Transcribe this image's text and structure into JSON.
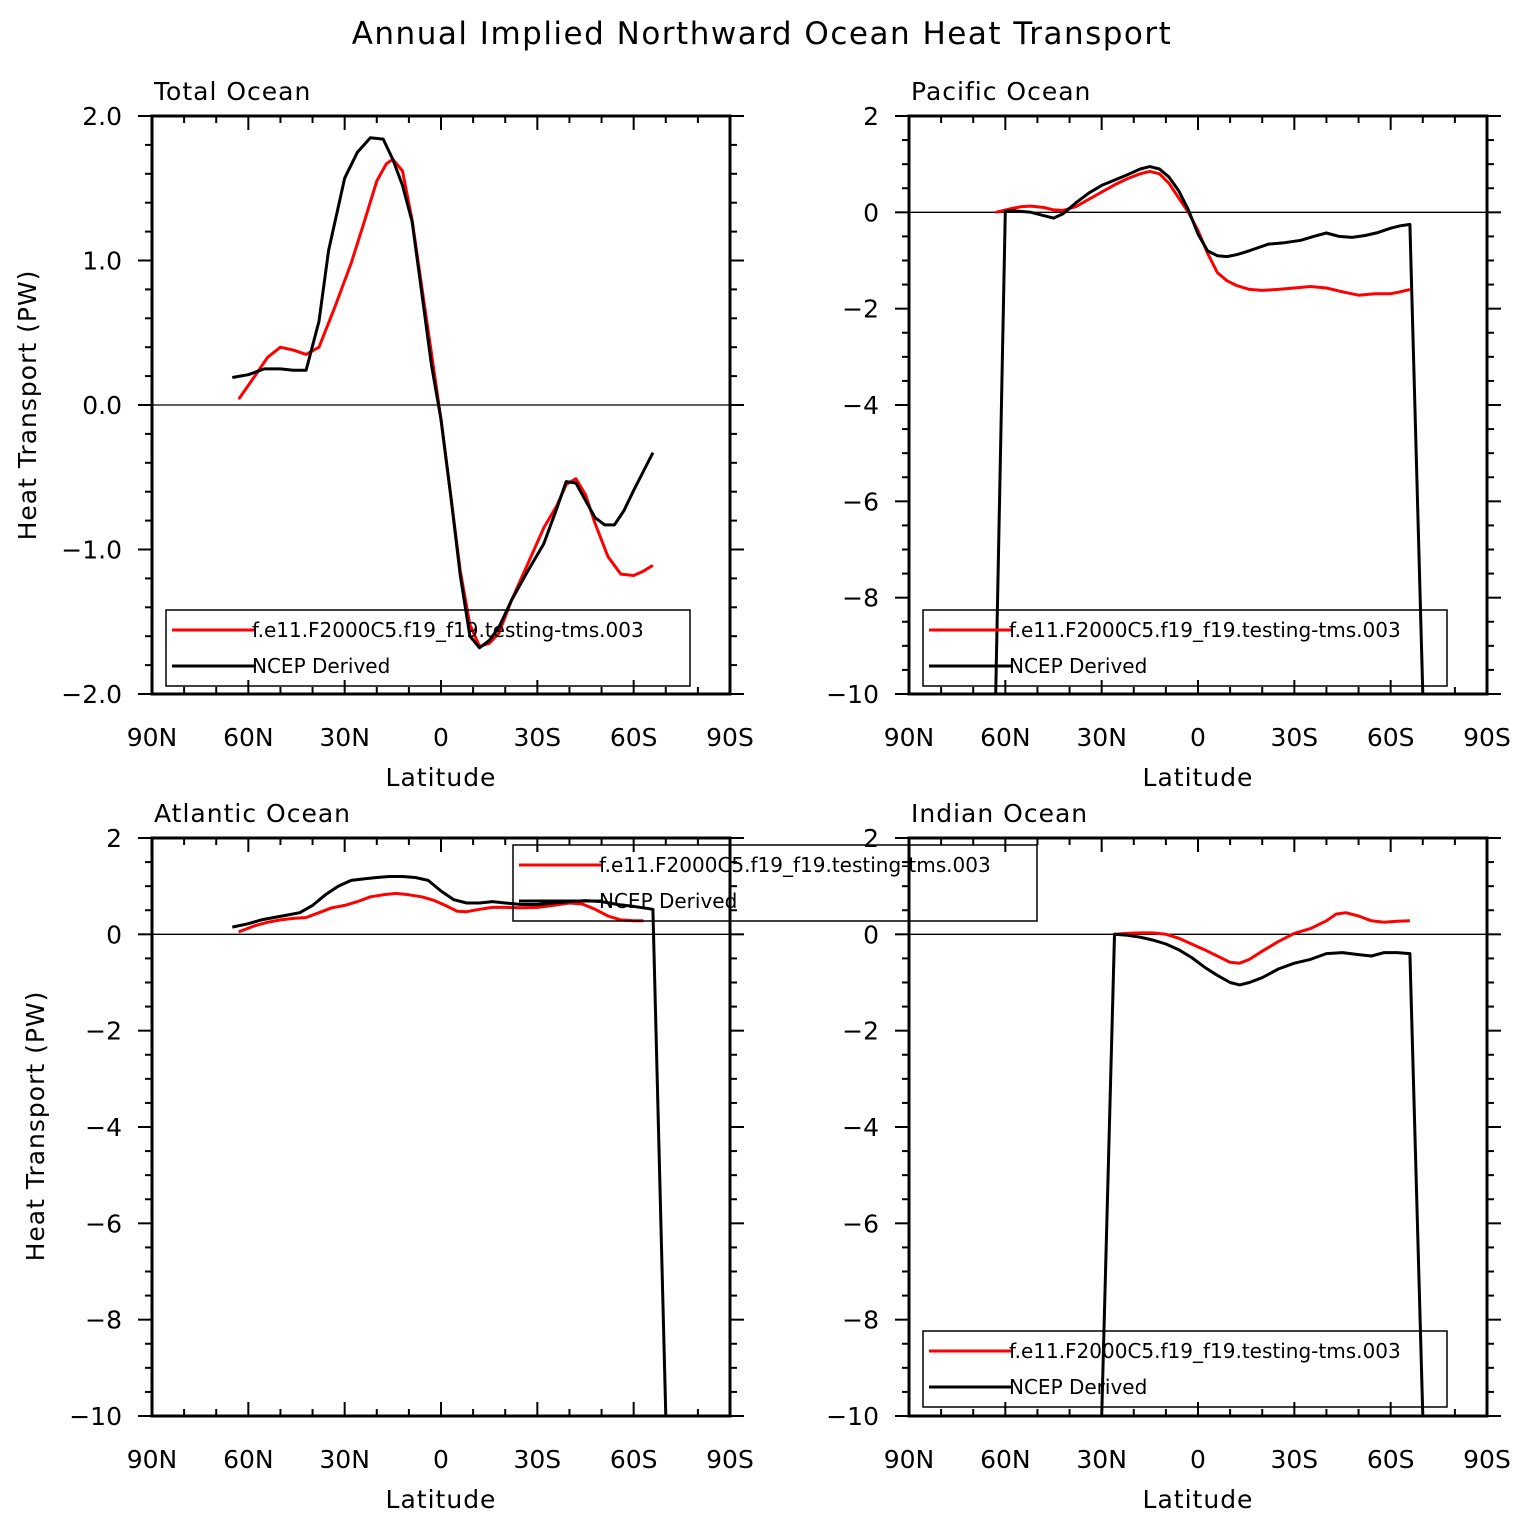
{
  "title": "Annual Implied Northward Ocean Heat Transport",
  "x_label": "Latitude",
  "y_label": "Heat Transport (PW)",
  "x_ticks": [
    "90N",
    "60N",
    "30N",
    "0",
    "30S",
    "60S",
    "90S"
  ],
  "legend": {
    "model": "f.e11.F2000C5.f19_f19.testing-tms.003",
    "obs": "NCEP Derived"
  },
  "colors": {
    "model": "#ff0000",
    "obs": "#000000"
  },
  "chart_data": [
    {
      "type": "line",
      "title": "Total Ocean",
      "xlabel": "Latitude",
      "ylabel": "Heat Transport (PW)",
      "xlim": [
        90,
        -90
      ],
      "ylim": [
        -2,
        2
      ],
      "y_ticks": [
        "2.0",
        "1.0",
        "0.0",
        "−1.0",
        "−2.0"
      ],
      "legend_position": "bottom",
      "series": [
        {
          "name": "f.e11.F2000C5.f19_f19.testing-tms.003",
          "x": [
            63,
            58,
            54,
            50,
            46,
            42,
            38,
            33,
            28,
            24,
            20,
            17,
            15,
            12,
            9,
            6,
            3,
            0,
            -3,
            -6,
            -9,
            -12,
            -15,
            -18,
            -22,
            -27,
            -32,
            -36,
            -39,
            -42,
            -45,
            -48,
            -52,
            -56,
            -60,
            -63,
            -66
          ],
          "y": [
            0.04,
            0.2,
            0.33,
            0.4,
            0.38,
            0.35,
            0.4,
            0.68,
            0.98,
            1.26,
            1.55,
            1.67,
            1.7,
            1.62,
            1.28,
            0.82,
            0.36,
            -0.1,
            -0.62,
            -1.15,
            -1.52,
            -1.67,
            -1.65,
            -1.58,
            -1.35,
            -1.1,
            -0.85,
            -0.7,
            -0.55,
            -0.51,
            -0.62,
            -0.82,
            -1.05,
            -1.17,
            -1.18,
            -1.15,
            -1.11
          ]
        },
        {
          "name": "NCEP Derived",
          "x": [
            65,
            60,
            55,
            50,
            46,
            42,
            38,
            35,
            30,
            26,
            22,
            18,
            15,
            12,
            9,
            6,
            3,
            0,
            -3,
            -6,
            -9,
            -12,
            -15,
            -18,
            -22,
            -27,
            -32,
            -36,
            -39,
            -42,
            -45,
            -48,
            -51,
            -54,
            -57,
            -60,
            -63,
            -66
          ],
          "y": [
            0.19,
            0.21,
            0.25,
            0.25,
            0.24,
            0.24,
            0.58,
            1.07,
            1.57,
            1.75,
            1.85,
            1.84,
            1.7,
            1.52,
            1.27,
            0.78,
            0.28,
            -0.1,
            -0.62,
            -1.18,
            -1.6,
            -1.68,
            -1.63,
            -1.54,
            -1.35,
            -1.15,
            -0.96,
            -0.72,
            -0.53,
            -0.54,
            -0.66,
            -0.78,
            -0.83,
            -0.83,
            -0.73,
            -0.59,
            -0.46,
            -0.33
          ]
        }
      ]
    },
    {
      "type": "line",
      "title": "Pacific Ocean",
      "xlabel": "Latitude",
      "ylabel": "",
      "xlim": [
        90,
        -90
      ],
      "ylim": [
        -10,
        2
      ],
      "y_ticks": [
        "2",
        "0",
        "−2",
        "−4",
        "−6",
        "−8",
        "−10"
      ],
      "legend_position": "bottom",
      "series": [
        {
          "name": "f.e11.F2000C5.f19_f19.testing-tms.003",
          "x": [
            63,
            58,
            55,
            52,
            48,
            45,
            42,
            38,
            34,
            30,
            26,
            22,
            18,
            15,
            12,
            9,
            6,
            3,
            0,
            -3,
            -6,
            -9,
            -12,
            -16,
            -20,
            -25,
            -30,
            -35,
            -40,
            -45,
            -50,
            -55,
            -60,
            -63,
            -66
          ],
          "y": [
            0.0,
            0.08,
            0.12,
            0.13,
            0.1,
            0.05,
            0.04,
            0.12,
            0.27,
            0.42,
            0.57,
            0.7,
            0.8,
            0.85,
            0.8,
            0.6,
            0.3,
            0.0,
            -0.38,
            -0.85,
            -1.25,
            -1.42,
            -1.52,
            -1.6,
            -1.62,
            -1.6,
            -1.57,
            -1.54,
            -1.57,
            -1.65,
            -1.72,
            -1.69,
            -1.69,
            -1.65,
            -1.6
          ]
        },
        {
          "name": "NCEP Derived",
          "x": [
            90,
            63,
            60,
            57,
            52,
            48,
            45,
            42,
            38,
            34,
            30,
            26,
            22,
            18,
            15,
            12,
            9,
            6,
            3,
            0,
            -3,
            -6,
            -9,
            -12,
            -15,
            -18,
            -22,
            -27,
            -32,
            -36,
            -40,
            -44,
            -48,
            -52,
            -56,
            -60,
            -63,
            -66,
            -70,
            -90
          ],
          "y": [
            -10,
            -10,
            0.02,
            0.03,
            0.0,
            -0.07,
            -0.12,
            -0.03,
            0.2,
            0.4,
            0.56,
            0.67,
            0.78,
            0.9,
            0.95,
            0.9,
            0.73,
            0.45,
            0.05,
            -0.45,
            -0.8,
            -0.9,
            -0.92,
            -0.88,
            -0.82,
            -0.75,
            -0.66,
            -0.63,
            -0.58,
            -0.5,
            -0.43,
            -0.5,
            -0.52,
            -0.48,
            -0.42,
            -0.33,
            -0.28,
            -0.25,
            -10,
            -10
          ]
        }
      ]
    },
    {
      "type": "line",
      "title": "Atlantic Ocean",
      "xlabel": "Latitude",
      "ylabel": "Heat Transport (PW)",
      "xlim": [
        90,
        -90
      ],
      "ylim": [
        -10,
        2
      ],
      "y_ticks": [
        "2",
        "0",
        "−2",
        "−4",
        "−6",
        "−8",
        "−10"
      ],
      "legend_position": "top-center",
      "series": [
        {
          "name": "f.e11.F2000C5.f19_f19.testing-tms.003",
          "x": [
            63,
            58,
            54,
            50,
            46,
            42,
            38,
            34,
            30,
            26,
            22,
            18,
            14,
            10,
            6,
            2,
            -2,
            -5,
            -8,
            -12,
            -16,
            -20,
            -25,
            -30,
            -35,
            -40,
            -44,
            -48,
            -52,
            -56,
            -60,
            -63
          ],
          "y": [
            0.05,
            0.18,
            0.25,
            0.3,
            0.33,
            0.35,
            0.45,
            0.55,
            0.6,
            0.68,
            0.78,
            0.82,
            0.85,
            0.82,
            0.78,
            0.7,
            0.58,
            0.48,
            0.47,
            0.52,
            0.56,
            0.56,
            0.55,
            0.56,
            0.6,
            0.65,
            0.63,
            0.52,
            0.38,
            0.3,
            0.28,
            0.28
          ]
        },
        {
          "name": "NCEP Derived",
          "x": [
            65,
            60,
            56,
            52,
            48,
            44,
            40,
            36,
            32,
            28,
            24,
            20,
            16,
            12,
            8,
            4,
            0,
            -4,
            -8,
            -12,
            -16,
            -20,
            -25,
            -30,
            -35,
            -40,
            -45,
            -50,
            -55,
            -60,
            -63,
            -66,
            -70,
            -90
          ],
          "y": [
            0.15,
            0.22,
            0.3,
            0.35,
            0.4,
            0.45,
            0.6,
            0.82,
            1.0,
            1.12,
            1.15,
            1.18,
            1.2,
            1.2,
            1.18,
            1.12,
            0.9,
            0.72,
            0.65,
            0.65,
            0.68,
            0.65,
            0.62,
            0.62,
            0.65,
            0.68,
            0.7,
            0.68,
            0.62,
            0.58,
            0.55,
            0.52,
            -10,
            -10
          ]
        }
      ]
    },
    {
      "type": "line",
      "title": "Indian Ocean",
      "xlabel": "Latitude",
      "ylabel": "",
      "xlim": [
        90,
        -90
      ],
      "ylim": [
        -10,
        2
      ],
      "y_ticks": [
        "2",
        "0",
        "−2",
        "−4",
        "−6",
        "−8",
        "−10"
      ],
      "legend_position": "bottom",
      "series": [
        {
          "name": "f.e11.F2000C5.f19_f19.testing-tms.003",
          "x": [
            26,
            22,
            18,
            14,
            10,
            6,
            2,
            -2,
            -6,
            -10,
            -13,
            -16,
            -20,
            -25,
            -30,
            -35,
            -40,
            -43,
            -46,
            -50,
            -54,
            -58,
            -62,
            -66
          ],
          "y": [
            0.0,
            0.02,
            0.03,
            0.03,
            0.0,
            -0.08,
            -0.2,
            -0.32,
            -0.45,
            -0.58,
            -0.6,
            -0.52,
            -0.35,
            -0.15,
            0.02,
            0.12,
            0.28,
            0.42,
            0.45,
            0.38,
            0.28,
            0.25,
            0.27,
            0.28
          ]
        },
        {
          "name": "NCEP Derived",
          "x": [
            90,
            30,
            26,
            22,
            18,
            14,
            10,
            6,
            2,
            -2,
            -6,
            -10,
            -13,
            -16,
            -20,
            -25,
            -30,
            -35,
            -40,
            -45,
            -50,
            -54,
            -58,
            -62,
            -66,
            -70,
            -90
          ],
          "y": [
            -10,
            -10,
            0.0,
            -0.02,
            -0.06,
            -0.12,
            -0.2,
            -0.32,
            -0.48,
            -0.68,
            -0.85,
            -1.0,
            -1.05,
            -1.0,
            -0.9,
            -0.72,
            -0.6,
            -0.52,
            -0.4,
            -0.38,
            -0.42,
            -0.45,
            -0.38,
            -0.38,
            -0.4,
            -10,
            -10
          ]
        }
      ]
    }
  ]
}
